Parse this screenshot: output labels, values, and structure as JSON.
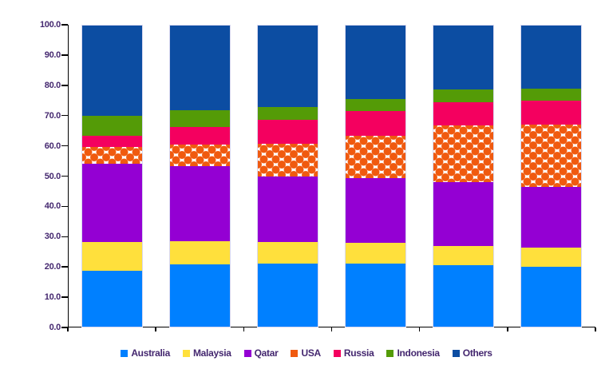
{
  "figure": {
    "background": "#ffffff"
  },
  "chart_data": {
    "type": "bar",
    "stacked": true,
    "stacked_total": 100,
    "title": "",
    "xlabel": "",
    "ylabel": "",
    "ylim": [
      0,
      100
    ],
    "grid": false,
    "categories": [
      "",
      "",
      "",
      "",
      "",
      ""
    ],
    "y_axis": {
      "ticks": [
        "100.0",
        "90.0",
        "80.0",
        "70.0",
        "60.0",
        "50.0",
        "40.0",
        "30.0",
        "20.0",
        "10.0",
        "0.0"
      ],
      "tick_label_color": "#44276F",
      "axis_line_color": "#000000"
    },
    "series": [
      {
        "name": "Australia",
        "color": "#0080FF",
        "pattern": "solid",
        "values": [
          18.6,
          20.6,
          20.9,
          20.9,
          20.4,
          19.8
        ]
      },
      {
        "name": "Malaysia",
        "color": "#FFE03C",
        "pattern": "solid",
        "values": [
          9.4,
          7.8,
          7.1,
          6.9,
          6.5,
          6.5
        ]
      },
      {
        "name": "Qatar",
        "color": "#9400D3",
        "pattern": "solid",
        "values": [
          26.0,
          25.0,
          22.0,
          21.6,
          21.2,
          20.2
        ]
      },
      {
        "name": "USA",
        "color": "#F05A0F",
        "pattern": "polka-dot-on-white",
        "values": [
          5.8,
          7.0,
          10.8,
          13.9,
          18.8,
          20.5
        ]
      },
      {
        "name": "Russia",
        "color": "#F4005F",
        "pattern": "solid",
        "values": [
          3.7,
          6.0,
          7.8,
          8.3,
          7.6,
          8.0
        ]
      },
      {
        "name": "Indonesia",
        "color": "#549B07",
        "pattern": "solid",
        "values": [
          6.5,
          5.5,
          4.4,
          4.1,
          4.3,
          4.1
        ]
      },
      {
        "name": "Others",
        "color": "#0C4DA2",
        "pattern": "solid",
        "values": [
          30.0,
          28.1,
          27.0,
          24.3,
          21.2,
          20.9
        ]
      }
    ],
    "legend": {
      "position": "bottom",
      "entries": [
        "Australia",
        "Malaysia",
        "Qatar",
        "USA",
        "Russia",
        "Indonesia",
        "Others"
      ]
    }
  }
}
